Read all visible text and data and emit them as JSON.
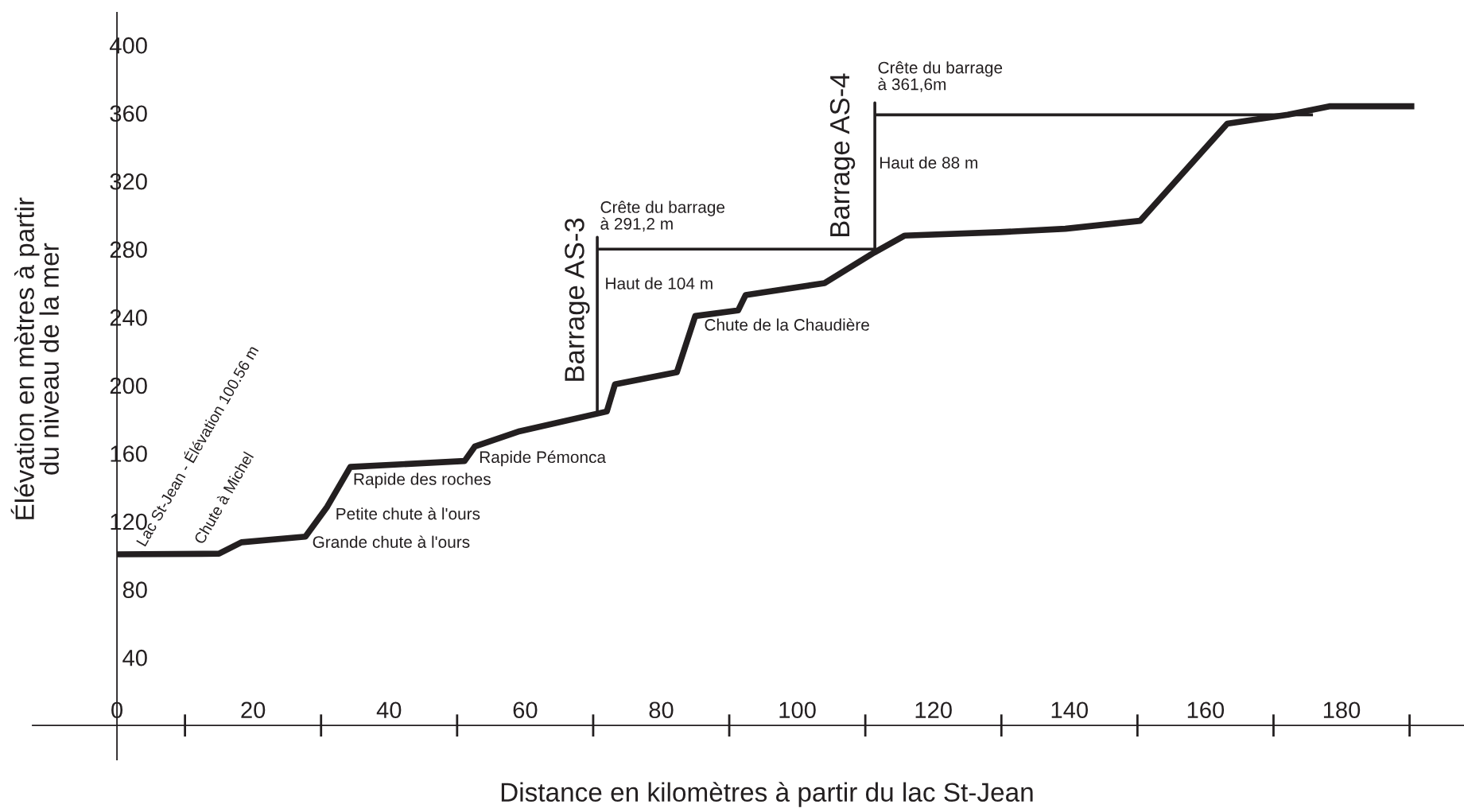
{
  "chart_data": {
    "type": "line",
    "xlabel": "Distance en kilomètres à partir du lac St-Jean",
    "ylabel": "Élévation en mètres à partir\ndu niveau de la mer",
    "x": [
      0,
      15,
      18.3,
      27.7,
      30.9,
      34.3,
      51.1,
      52.6,
      59.2,
      72,
      73.2,
      82.3,
      85,
      91.3,
      92.4,
      104,
      111.3,
      115.8,
      129.8,
      139.4,
      150.4,
      163.2,
      172.1,
      178.2,
      190.7
    ],
    "series": [
      {
        "color": "#231f20",
        "values": [
          100.6,
          101,
          107.7,
          111,
          128.6,
          152,
          155.5,
          164,
          173,
          184.6,
          200.5,
          207.7,
          240.7,
          244,
          253,
          260,
          278,
          288,
          290,
          292,
          296.7,
          353.8,
          359,
          364,
          364
        ]
      },
      {
        "color": "#231f20",
        "x": [
          70.6,
          70.6,
          70.6,
          111.3
        ],
        "values": [
          184,
          287,
          280,
          280
        ]
      },
      {
        "color": "#231f20",
        "x": [
          111.4,
          111.4,
          111.4,
          175.8
        ],
        "values": [
          278,
          366,
          359,
          359
        ]
      }
    ],
    "xlim": [
      -12.4,
      198
    ],
    "ylim": [
      -20,
      419
    ],
    "xticks": [
      0,
      20,
      40,
      60,
      80,
      100,
      120,
      140,
      160,
      180
    ],
    "yticks": [
      40,
      80,
      120,
      160,
      200,
      240,
      280,
      320,
      360,
      400
    ],
    "annotations": [
      {
        "text": "Lac St-Jean - Élévation 100.56 m",
        "x": 0,
        "y": 100.6
      },
      {
        "text": "Chute à Michel",
        "x": 15,
        "y": 101
      },
      {
        "text": "Grande chute à l'ours",
        "x": 27.7,
        "y": 111
      },
      {
        "text": "Petite chute à l'ours",
        "x": 30.9,
        "y": 128.6
      },
      {
        "text": "Rapide des roches",
        "x": 34.3,
        "y": 152
      },
      {
        "text": "Rapide Pémonca",
        "x": 52.6,
        "y": 164
      },
      {
        "text": "Barrage AS-3",
        "x": 70.6,
        "y": 250
      },
      {
        "text": "Crête du barrage\nà 291,2 m",
        "x": 70.6,
        "y": 287
      },
      {
        "text": "Haut de 104 m",
        "x": 70.6,
        "y": 260
      },
      {
        "text": "Chute de la Chaudière",
        "x": 85,
        "y": 240.7
      },
      {
        "text": "Barrage AS-4",
        "x": 111.4,
        "y": 335
      },
      {
        "text": "Crête du barrage\nà 361,6m",
        "x": 111.4,
        "y": 366
      },
      {
        "text": "Haut de 88 m",
        "x": 111.4,
        "y": 330
      }
    ],
    "grid": false,
    "marker": "none",
    "line_style": "solid"
  }
}
